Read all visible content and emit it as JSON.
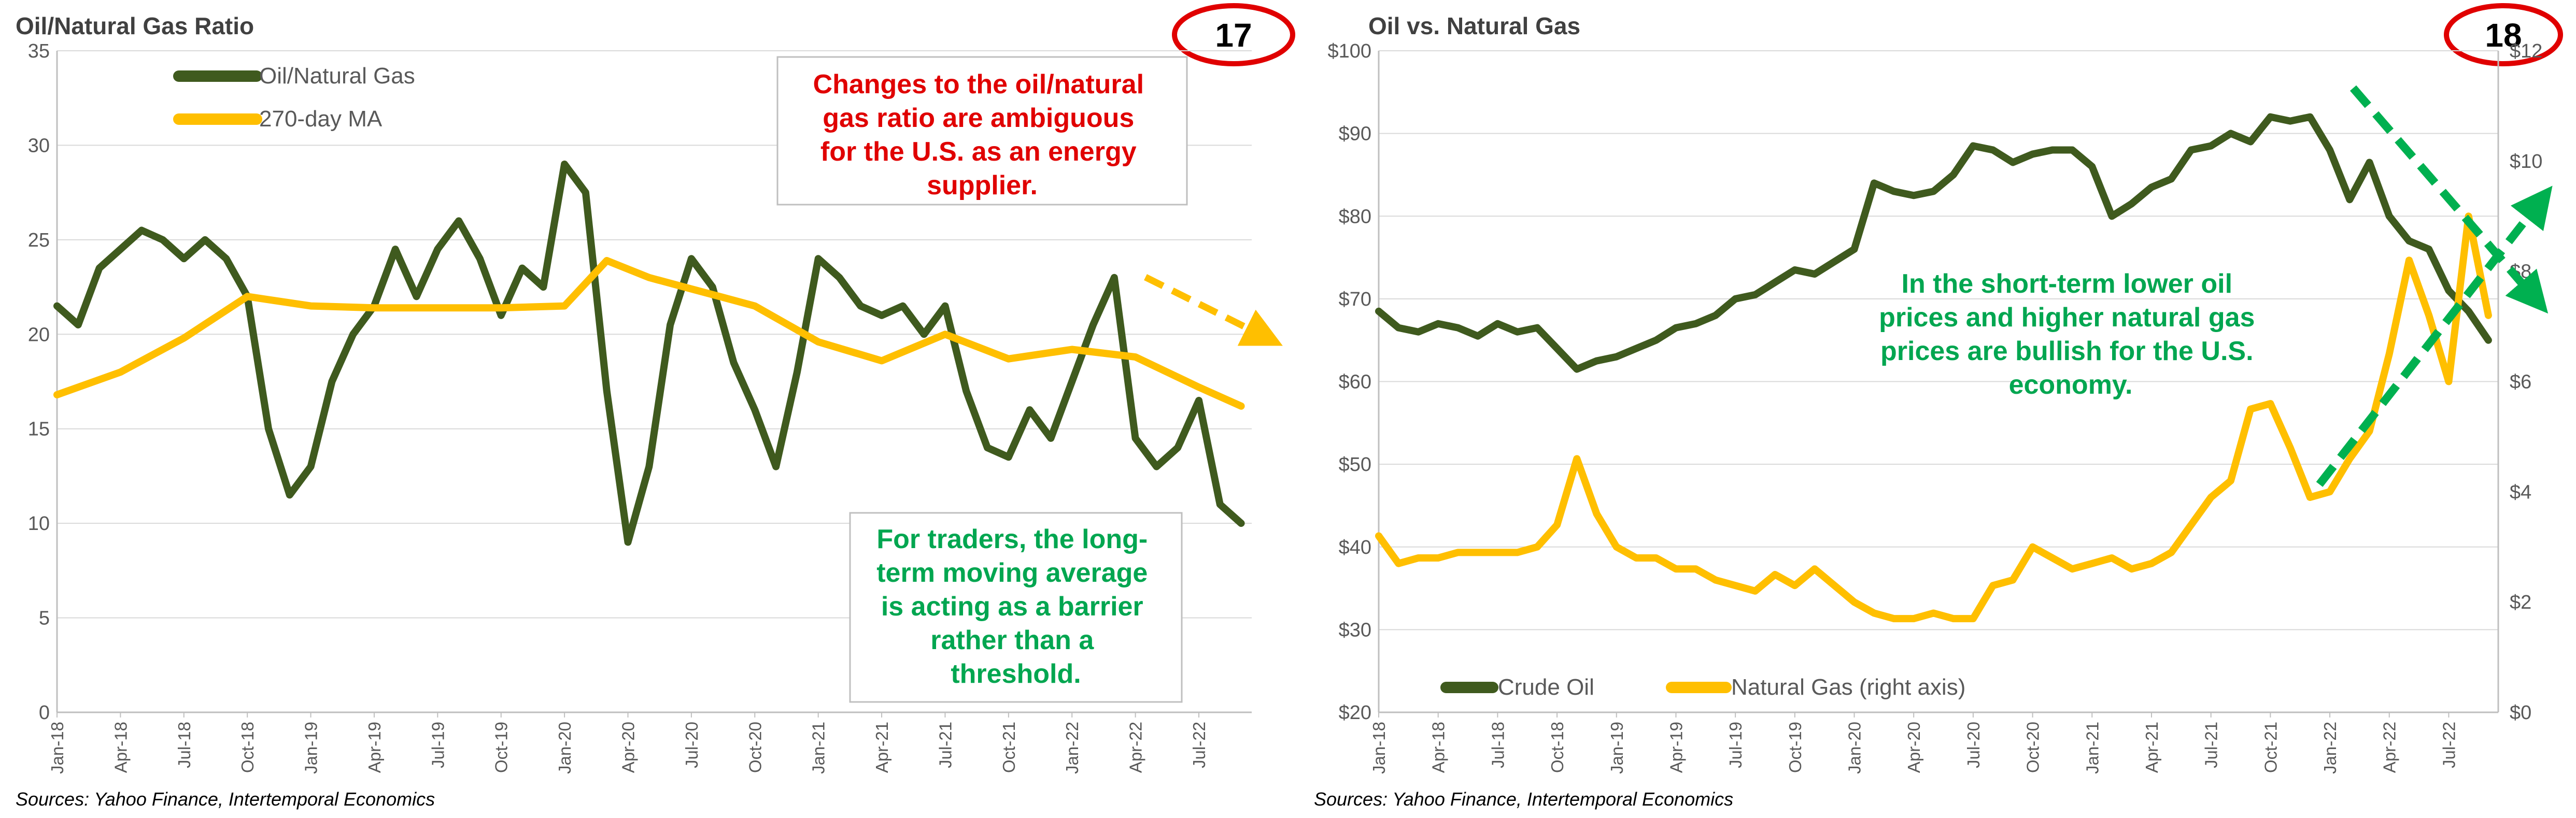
{
  "colors": {
    "oil": "#3f5a1e",
    "gas": "#ffbf00",
    "ma": "#ffbf00",
    "red": "#e00000",
    "green": "#00a650",
    "grid": "#d9d9d9",
    "axis": "#bfbfbf",
    "arrow_orange": "#ffbf00",
    "arrow_green": "#00b050"
  },
  "x_ticks": [
    "Jan-18",
    "Apr-18",
    "Jul-18",
    "Oct-18",
    "Jan-19",
    "Apr-19",
    "Jul-19",
    "Oct-19",
    "Jan-20",
    "Apr-20",
    "Jul-20",
    "Oct-20",
    "Jan-21",
    "Apr-21",
    "Jul-21",
    "Oct-21",
    "Jan-22",
    "Apr-22",
    "Jul-22"
  ],
  "chart_data": [
    {
      "type": "line",
      "title": "Oil/Natural Gas Ratio",
      "badge": "17",
      "xlabel": "",
      "ylabel": "",
      "ylim": [
        0,
        35
      ],
      "y_ticks": [
        "0",
        "5",
        "10",
        "15",
        "20",
        "25",
        "30",
        "35"
      ],
      "grid": true,
      "legend_position": "top-left",
      "source": "Sources: Yahoo Finance, Intertemporal Economics",
      "annotations": [
        "Changes to the oil/natural gas ratio are ambiguous for the U.S. as an energy supplier.",
        "For traders, the long-term moving average is acting as a barrier rather than a threshold."
      ],
      "series": [
        {
          "name": "Oil/Natural Gas",
          "x": [
            "2018-01",
            "2018-02",
            "2018-03",
            "2018-04",
            "2018-05",
            "2018-06",
            "2018-07",
            "2018-08",
            "2018-09",
            "2018-10",
            "2018-11",
            "2018-12",
            "2019-01",
            "2019-02",
            "2019-03",
            "2019-04",
            "2019-05",
            "2019-06",
            "2019-07",
            "2019-08",
            "2019-09",
            "2019-10",
            "2019-11",
            "2019-12",
            "2020-01",
            "2020-02",
            "2020-03",
            "2020-04",
            "2020-05",
            "2020-06",
            "2020-07",
            "2020-08",
            "2020-09",
            "2020-10",
            "2020-11",
            "2020-12",
            "2021-01",
            "2021-02",
            "2021-03",
            "2021-04",
            "2021-05",
            "2021-06",
            "2021-07",
            "2021-08",
            "2021-09",
            "2021-10",
            "2021-11",
            "2021-12",
            "2022-01",
            "2022-02",
            "2022-03",
            "2022-04",
            "2022-05",
            "2022-06",
            "2022-07",
            "2022-08",
            "2022-09"
          ],
          "values": [
            21.5,
            20.5,
            23.5,
            24.5,
            25.5,
            25.0,
            24.0,
            25.0,
            24.0,
            22.0,
            15.0,
            11.5,
            13.0,
            17.5,
            20.0,
            21.5,
            24.5,
            22.0,
            24.5,
            26.0,
            24.0,
            21.0,
            23.5,
            22.5,
            29.0,
            27.5,
            17.0,
            9.0,
            13.0,
            20.5,
            24.0,
            22.5,
            18.5,
            16.0,
            13.0,
            18.0,
            24.0,
            23.0,
            21.5,
            21.0,
            21.5,
            20.0,
            21.5,
            17.0,
            14.0,
            13.5,
            16.0,
            14.5,
            17.5,
            20.5,
            23.0,
            14.5,
            13.0,
            14.0,
            16.5,
            11.0,
            10.0
          ]
        },
        {
          "name": "270-day MA",
          "x": [
            "2018-01",
            "2018-04",
            "2018-07",
            "2018-10",
            "2019-01",
            "2019-04",
            "2019-07",
            "2019-10",
            "2020-01",
            "2020-03",
            "2020-05",
            "2020-07",
            "2020-10",
            "2021-01",
            "2021-04",
            "2021-07",
            "2021-10",
            "2022-01",
            "2022-04",
            "2022-07",
            "2022-09"
          ],
          "values": [
            16.8,
            18.0,
            19.8,
            22.0,
            21.5,
            21.4,
            21.4,
            21.4,
            21.5,
            23.9,
            23.0,
            22.4,
            21.5,
            19.6,
            18.6,
            20.0,
            18.7,
            19.2,
            18.8,
            17.2,
            16.2
          ]
        }
      ]
    },
    {
      "type": "line",
      "title": "Oil vs. Natural Gas",
      "badge": "18",
      "xlabel": "",
      "ylabel": "",
      "ylim": [
        20,
        100
      ],
      "y_ticks": [
        "$20",
        "$30",
        "$40",
        "$50",
        "$60",
        "$70",
        "$80",
        "$90",
        "$100"
      ],
      "y2lim": [
        0,
        12
      ],
      "y2_ticks": [
        "$0",
        "$2",
        "$4",
        "$6",
        "$8",
        "$10",
        "$12"
      ],
      "grid": true,
      "legend_position": "bottom-left",
      "source": "Sources: Yahoo Finance, Intertemporal Economics",
      "annotations": [
        "In the short-term lower oil prices and higher natural gas prices are bullish for the U.S. economy."
      ],
      "series": [
        {
          "name": "Crude Oil",
          "axis": "left",
          "x": [
            "2018-01",
            "2018-02",
            "2018-03",
            "2018-04",
            "2018-05",
            "2018-06",
            "2018-07",
            "2018-08",
            "2018-09",
            "2018-10",
            "2018-11",
            "2018-12",
            "2019-01",
            "2019-02",
            "2019-03",
            "2019-04",
            "2019-05",
            "2019-06",
            "2019-07",
            "2019-08",
            "2019-09",
            "2019-10",
            "2019-11",
            "2019-12",
            "2020-01",
            "2020-02",
            "2020-03",
            "2020-04",
            "2020-05",
            "2020-06",
            "2020-07",
            "2020-08",
            "2020-09",
            "2020-10",
            "2020-11",
            "2020-12",
            "2021-01",
            "2021-02",
            "2021-03",
            "2021-04",
            "2021-05",
            "2021-06",
            "2021-07",
            "2021-08",
            "2021-09",
            "2021-10",
            "2021-11",
            "2021-12",
            "2022-01",
            "2022-02",
            "2022-03",
            "2022-04",
            "2022-05",
            "2022-06",
            "2022-07",
            "2022-08",
            "2022-09"
          ],
          "values": [
            68.5,
            66.5,
            66.0,
            67.0,
            66.5,
            65.5,
            67.0,
            66.0,
            66.5,
            64.0,
            61.5,
            62.5,
            63.0,
            64.0,
            65.0,
            66.5,
            67.0,
            68.0,
            70.0,
            70.5,
            72.0,
            73.5,
            73.0,
            74.5,
            76.0,
            84.0,
            83.0,
            82.5,
            83.0,
            85.0,
            88.5,
            88.0,
            86.5,
            87.5,
            88.0,
            88.0,
            86.0,
            80.0,
            81.5,
            83.5,
            84.5,
            88.0,
            88.5,
            90.0,
            89.0,
            92.0,
            91.5,
            92.0,
            88.0,
            82.0,
            86.5,
            80.0,
            77.0,
            76.0,
            71.0,
            68.5,
            65.0
          ]
        },
        {
          "name": "Natural Gas (right axis)",
          "axis": "right",
          "x": [
            "2018-01",
            "2018-02",
            "2018-03",
            "2018-04",
            "2018-05",
            "2018-06",
            "2018-07",
            "2018-08",
            "2018-09",
            "2018-10",
            "2018-11",
            "2018-12",
            "2019-01",
            "2019-02",
            "2019-03",
            "2019-04",
            "2019-05",
            "2019-06",
            "2019-07",
            "2019-08",
            "2019-09",
            "2019-10",
            "2019-11",
            "2019-12",
            "2020-01",
            "2020-02",
            "2020-03",
            "2020-04",
            "2020-05",
            "2020-06",
            "2020-07",
            "2020-08",
            "2020-09",
            "2020-10",
            "2020-11",
            "2020-12",
            "2021-01",
            "2021-02",
            "2021-03",
            "2021-04",
            "2021-05",
            "2021-06",
            "2021-07",
            "2021-08",
            "2021-09",
            "2021-10",
            "2021-11",
            "2021-12",
            "2022-01",
            "2022-02",
            "2022-03",
            "2022-04",
            "2022-05",
            "2022-06",
            "2022-07",
            "2022-08",
            "2022-09"
          ],
          "values": [
            3.2,
            2.7,
            2.8,
            2.8,
            2.9,
            2.9,
            2.9,
            2.9,
            3.0,
            3.4,
            4.6,
            3.6,
            3.0,
            2.8,
            2.8,
            2.6,
            2.6,
            2.4,
            2.3,
            2.2,
            2.5,
            2.3,
            2.6,
            2.3,
            2.0,
            1.8,
            1.7,
            1.7,
            1.8,
            1.7,
            1.7,
            2.3,
            2.4,
            3.0,
            2.8,
            2.6,
            2.7,
            2.8,
            2.6,
            2.7,
            2.9,
            3.4,
            3.9,
            4.2,
            5.5,
            5.6,
            4.8,
            3.9,
            4.0,
            4.6,
            5.1,
            6.5,
            8.2,
            7.2,
            6.0,
            9.0,
            7.2
          ]
        }
      ]
    }
  ]
}
